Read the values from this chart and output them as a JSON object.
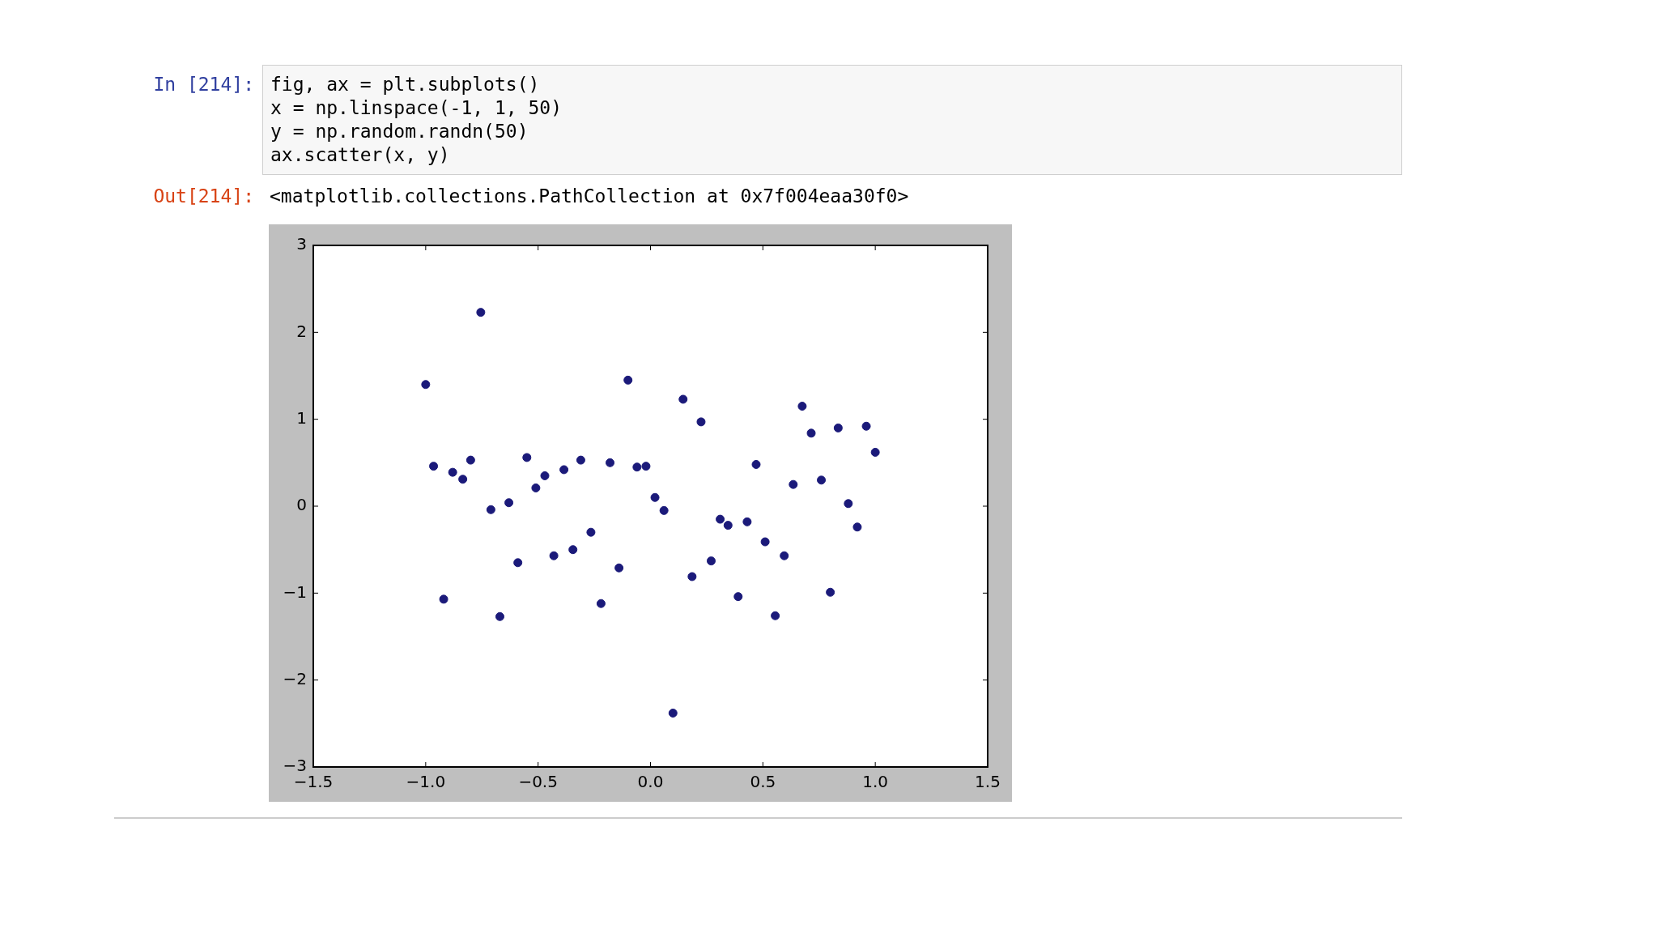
{
  "chart_data": {
    "type": "scatter",
    "color": "#1b1a7a",
    "marker": "circle",
    "x": [
      -1.0,
      -0.965,
      -0.92,
      -0.88,
      -0.835,
      -0.8,
      -0.755,
      -0.71,
      -0.67,
      -0.63,
      -0.59,
      -0.55,
      -0.51,
      -0.47,
      -0.43,
      -0.385,
      -0.345,
      -0.31,
      -0.265,
      -0.22,
      -0.18,
      -0.14,
      -0.1,
      -0.06,
      -0.02,
      0.02,
      0.06,
      0.1,
      0.145,
      0.185,
      0.225,
      0.27,
      0.31,
      0.345,
      0.39,
      0.43,
      0.47,
      0.51,
      0.555,
      0.595,
      0.635,
      0.675,
      0.715,
      0.76,
      0.8,
      0.835,
      0.88,
      0.92,
      0.96,
      1.0
    ],
    "values": [
      1.4,
      0.46,
      -1.07,
      0.39,
      0.31,
      0.53,
      2.23,
      -0.04,
      -1.27,
      0.04,
      -0.65,
      0.56,
      0.21,
      0.35,
      -0.57,
      0.42,
      -0.5,
      0.53,
      -0.3,
      -1.12,
      0.5,
      -0.71,
      1.45,
      0.45,
      0.46,
      0.1,
      -0.05,
      -2.38,
      1.23,
      -0.81,
      0.97,
      -0.63,
      -0.15,
      -0.22,
      -1.04,
      -0.18,
      0.48,
      -0.41,
      -1.26,
      -0.57,
      0.25,
      1.15,
      0.84,
      0.3,
      -0.99,
      0.9,
      0.03,
      -0.24,
      0.92,
      0.62
    ],
    "xlim": [
      -1.5,
      1.5
    ],
    "ylim": [
      -3,
      3
    ],
    "xticks": [
      {
        "value": -1.5,
        "label": "−1.5"
      },
      {
        "value": -1,
        "label": "−1.0"
      },
      {
        "value": -0.5,
        "label": "−0.5"
      },
      {
        "value": 0,
        "label": "0.0"
      },
      {
        "value": 0.5,
        "label": "0.5"
      },
      {
        "value": 1,
        "label": "1.0"
      },
      {
        "value": 1.5,
        "label": "1.5"
      }
    ],
    "yticks": [
      {
        "value": -3,
        "label": "−3"
      },
      {
        "value": -2,
        "label": "−2"
      },
      {
        "value": -1,
        "label": "−1"
      },
      0,
      1,
      2,
      3
    ],
    "annotations": [
      "In [214]:",
      "fig, ax = plt.subplots()",
      "x = np.linspace(-1, 1, 50)",
      "y = np.random.randn(50)",
      "ax.scatter(x, y)",
      "Out[214]:",
      "<matplotlib.collections.PathCollection at 0x7f004eaa30f0>"
    ]
  }
}
